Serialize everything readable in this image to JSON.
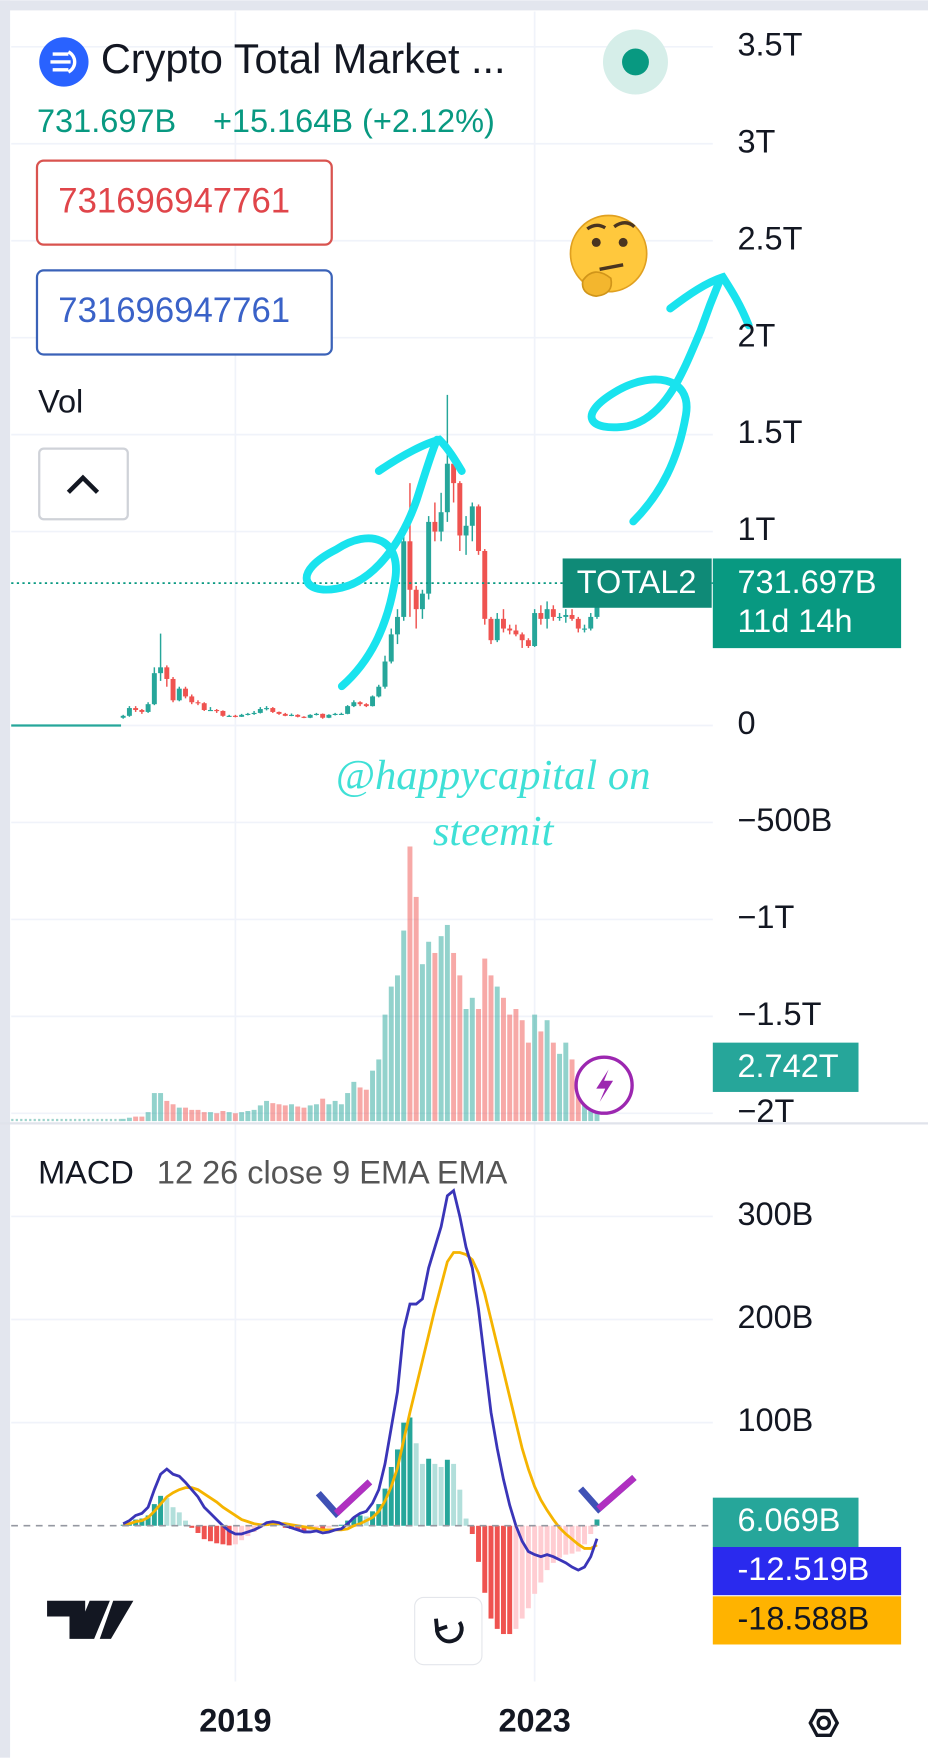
{
  "header": {
    "title": "Crypto Total Market ...",
    "price": "731.697B",
    "change": "+15.164B (+2.12%)",
    "sell_input": "731696947761",
    "buy_input": "731696947761"
  },
  "watermark": [
    "@happycapital on",
    "steemit"
  ],
  "chart_data": [
    {
      "type": "candlestick",
      "symbol_label": "TOTAL2",
      "price_tag": "731.697B",
      "countdown": "11d 14h",
      "up_color": "#26a69a",
      "down_color": "#ef5350",
      "open": [
        40,
        50,
        90,
        80,
        70,
        110,
        270,
        300,
        240,
        130,
        190,
        150,
        120,
        115,
        80,
        80,
        75,
        50,
        50,
        45,
        55,
        60,
        65,
        85,
        90,
        70,
        60,
        50,
        55,
        45,
        40,
        55,
        60,
        40,
        55,
        60,
        60,
        100,
        120,
        110,
        100,
        150,
        200,
        330,
        470,
        560,
        950,
        700,
        600,
        680,
        1050,
        1000,
        1100,
        1350,
        1250,
        980,
        1030,
        1130,
        900,
        550,
        440,
        550,
        500,
        490,
        470,
        440,
        410,
        580,
        550,
        600,
        560,
        560,
        570,
        550,
        500,
        500,
        560
      ],
      "high": [
        55,
        100,
        100,
        85,
        120,
        300,
        474,
        310,
        250,
        200,
        200,
        160,
        130,
        120,
        95,
        85,
        78,
        55,
        55,
        60,
        65,
        75,
        95,
        100,
        95,
        72,
        65,
        62,
        58,
        48,
        58,
        65,
        62,
        58,
        65,
        66,
        105,
        130,
        125,
        115,
        155,
        210,
        360,
        500,
        600,
        1000,
        1250,
        720,
        700,
        1080,
        1150,
        1200,
        1705,
        1400,
        1260,
        1080,
        1150,
        1140,
        910,
        560,
        580,
        600,
        520,
        520,
        480,
        450,
        600,
        620,
        640,
        620,
        580,
        600,
        600,
        560,
        520,
        580,
        740
      ],
      "low": [
        35,
        45,
        70,
        60,
        65,
        105,
        230,
        200,
        120,
        125,
        140,
        110,
        105,
        75,
        75,
        65,
        45,
        44,
        42,
        44,
        52,
        55,
        62,
        78,
        65,
        55,
        48,
        48,
        42,
        38,
        38,
        52,
        35,
        38,
        52,
        55,
        58,
        95,
        100,
        95,
        98,
        145,
        190,
        320,
        420,
        540,
        560,
        500,
        550,
        650,
        950,
        950,
        1050,
        1150,
        900,
        880,
        950,
        880,
        520,
        420,
        430,
        480,
        470,
        460,
        400,
        400,
        405,
        520,
        500,
        540,
        540,
        530,
        540,
        480,
        480,
        490,
        550
      ],
      "close": [
        50,
        90,
        80,
        70,
        110,
        270,
        300,
        240,
        130,
        190,
        150,
        120,
        115,
        80,
        80,
        75,
        50,
        50,
        45,
        55,
        60,
        65,
        85,
        90,
        70,
        60,
        50,
        55,
        45,
        40,
        55,
        60,
        40,
        55,
        60,
        60,
        100,
        120,
        110,
        100,
        150,
        200,
        330,
        470,
        560,
        950,
        700,
        600,
        680,
        1050,
        1000,
        1100,
        1350,
        1250,
        980,
        1030,
        1130,
        900,
        550,
        440,
        550,
        500,
        490,
        470,
        440,
        410,
        580,
        550,
        600,
        560,
        560,
        570,
        550,
        500,
        500,
        560,
        731.697
      ],
      "ylim": [
        -2040,
        3682
      ],
      "yticks": [
        {
          "value": 3500,
          "label": "3.5T"
        },
        {
          "value": 3000,
          "label": "3T"
        },
        {
          "value": 2500,
          "label": "2.5T"
        },
        {
          "value": 2000,
          "label": "2T"
        },
        {
          "value": 1500,
          "label": "1.5T"
        },
        {
          "value": 1000,
          "label": "1T"
        },
        0,
        {
          "value": -500,
          "label": "−500B"
        },
        {
          "value": -1000,
          "label": "−1T"
        },
        {
          "value": -1500,
          "label": "−1.5T"
        },
        {
          "value": -2000,
          "label": "−2T"
        }
      ]
    },
    {
      "type": "volume",
      "title": "Vol",
      "value_tag": "2.742T",
      "values": [
        2,
        3,
        4,
        4,
        8,
        25,
        25,
        18,
        15,
        12,
        12,
        10,
        10,
        8,
        8,
        7,
        9,
        8,
        7,
        8,
        9,
        10,
        14,
        18,
        16,
        15,
        14,
        15,
        13,
        12,
        14,
        15,
        20,
        15,
        18,
        15,
        25,
        35,
        30,
        28,
        45,
        55,
        95,
        120,
        130,
        170,
        245,
        200,
        140,
        160,
        150,
        165,
        175,
        150,
        130,
        100,
        110,
        100,
        145,
        130,
        120,
        110,
        95,
        100,
        90,
        70,
        95,
        80,
        90,
        70,
        60,
        70,
        55,
        40,
        40,
        35,
        10
      ]
    },
    {
      "type": "macd",
      "title": "MACD",
      "subtitle": "12 26 close 9 EMA EMA",
      "categories": [
        null,
        null,
        null,
        null,
        null,
        null,
        null,
        null,
        null,
        null,
        null,
        null,
        null,
        null,
        null,
        null,
        null,
        null,
        "2019",
        null,
        null,
        null,
        null,
        null,
        null,
        null,
        null,
        null,
        null,
        null,
        null,
        null,
        null,
        null,
        null,
        null,
        null,
        null,
        null,
        null,
        null,
        null,
        null,
        null,
        null,
        null,
        null,
        null,
        null,
        null,
        null,
        null,
        null,
        null,
        null,
        null,
        null,
        null,
        null,
        null,
        null,
        null,
        null,
        null,
        null,
        null,
        "2023",
        null,
        null,
        null,
        null,
        null,
        null,
        null,
        null,
        null,
        null
      ],
      "histogram": {
        "value_label": "6.069B",
        "values": [
          1,
          3,
          6,
          7,
          10,
          21,
          29,
          27,
          18,
          13,
          5,
          -2,
          -7,
          -13,
          -15,
          -17,
          -18,
          -19,
          -18,
          -14,
          -10,
          -6,
          -2,
          2,
          2,
          1,
          -2,
          -3,
          -4,
          -5,
          -4,
          -2,
          -3,
          -2,
          0,
          1,
          5,
          8,
          10,
          9,
          14,
          21,
          36,
          57,
          74,
          100,
          105,
          80,
          60,
          65,
          60,
          57,
          64,
          60,
          35,
          7,
          -8,
          -35,
          -65,
          -90,
          -100,
          -105,
          -105,
          -100,
          -90,
          -80,
          -66,
          -55,
          -43,
          -36,
          -31,
          -28,
          -27,
          -25,
          -18,
          -8,
          6.069
        ]
      },
      "macd_line": {
        "color": "#3a35b8",
        "value_label": "-12.519B",
        "values": [
          2,
          5,
          10,
          12,
          18,
          35,
          50,
          55,
          50,
          48,
          42,
          35,
          28,
          18,
          12,
          6,
          0,
          -5,
          -8,
          -8,
          -6,
          -4,
          -1,
          3,
          4,
          3,
          0,
          -2,
          -4,
          -6,
          -6,
          -5,
          -7,
          -6,
          -4,
          -3,
          2,
          8,
          12,
          14,
          22,
          35,
          60,
          95,
          130,
          190,
          215,
          215,
          220,
          250,
          270,
          290,
          320,
          325,
          300,
          270,
          250,
          210,
          160,
          110,
          75,
          45,
          20,
          0,
          -15,
          -25,
          -28,
          -30,
          -28,
          -30,
          -33,
          -36,
          -40,
          -43,
          -40,
          -30,
          -12.519
        ]
      },
      "signal_line": {
        "color": "#f5b400",
        "value_label": "-18.588B",
        "values": [
          1,
          2,
          4,
          5,
          8,
          14,
          21,
          28,
          32,
          35,
          37,
          37,
          35,
          31,
          27,
          23,
          18,
          14,
          10,
          6,
          4,
          2,
          1,
          1,
          2,
          2,
          2,
          1,
          0,
          -1,
          -2,
          -3,
          -4,
          -4,
          -4,
          -4,
          -3,
          0,
          2,
          5,
          8,
          14,
          24,
          38,
          56,
          83,
          110,
          135,
          160,
          185,
          210,
          233,
          256,
          265,
          265,
          263,
          258,
          245,
          225,
          200,
          175,
          150,
          125,
          100,
          75,
          55,
          38,
          25,
          15,
          6,
          -2,
          -8,
          -13,
          -18,
          -22,
          -22,
          -18.588
        ]
      },
      "ylim": [
        -151,
        387
      ],
      "yticks": [
        {
          "value": 100,
          "label": "100B"
        },
        {
          "value": 200,
          "label": "200B"
        },
        {
          "value": 300,
          "label": "300B"
        }
      ]
    }
  ]
}
